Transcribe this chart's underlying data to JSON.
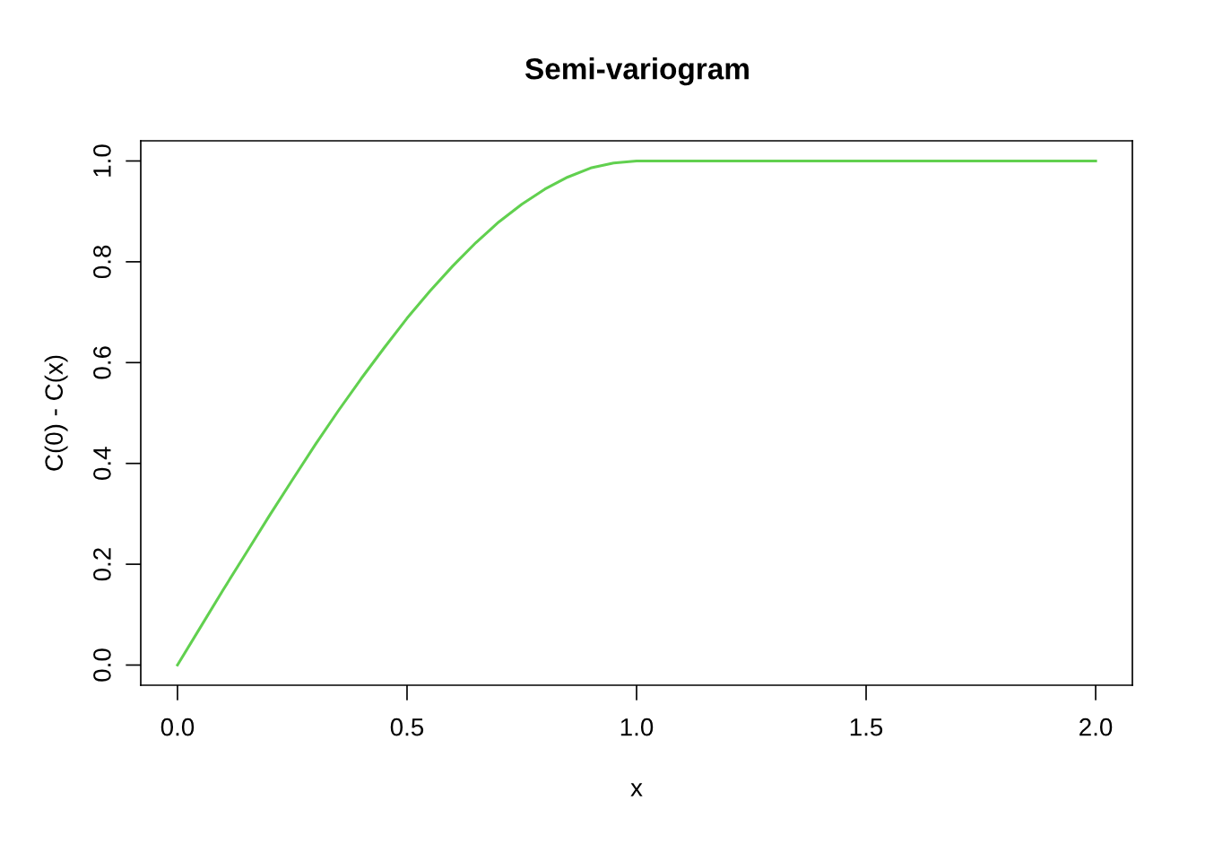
{
  "chart_data": {
    "type": "line",
    "title": "Semi-variogram",
    "xlabel": "x",
    "ylabel": "C(0) - C(x)",
    "x": [
      0,
      0.05,
      0.1,
      0.15,
      0.2,
      0.25,
      0.3,
      0.35,
      0.4,
      0.45,
      0.5,
      0.55,
      0.6,
      0.65,
      0.7,
      0.75,
      0.8,
      0.85,
      0.9,
      0.95,
      1.0,
      1.5,
      2.0
    ],
    "series": [
      {
        "color": "#61d04f",
        "values": [
          0,
          0.075,
          0.15,
          0.223,
          0.296,
          0.367,
          0.437,
          0.504,
          0.568,
          0.629,
          0.688,
          0.742,
          0.792,
          0.838,
          0.879,
          0.914,
          0.944,
          0.968,
          0.986,
          0.996,
          1.0,
          1.0,
          1.0
        ]
      }
    ],
    "xlim": [
      -0.08,
      2.08
    ],
    "ylim": [
      -0.04,
      1.04
    ],
    "xticks": [
      {
        "value": 0,
        "label": "0.0"
      },
      0.5,
      {
        "value": 1,
        "label": "1.0"
      },
      1.5,
      {
        "value": 2,
        "label": "2.0"
      }
    ],
    "yticks": [
      {
        "value": 0,
        "label": "0.0"
      },
      0.2,
      0.4,
      0.6,
      0.8,
      {
        "value": 1,
        "label": "1.0"
      }
    ],
    "grid": false,
    "marker": "none",
    "line_style": "solid"
  }
}
